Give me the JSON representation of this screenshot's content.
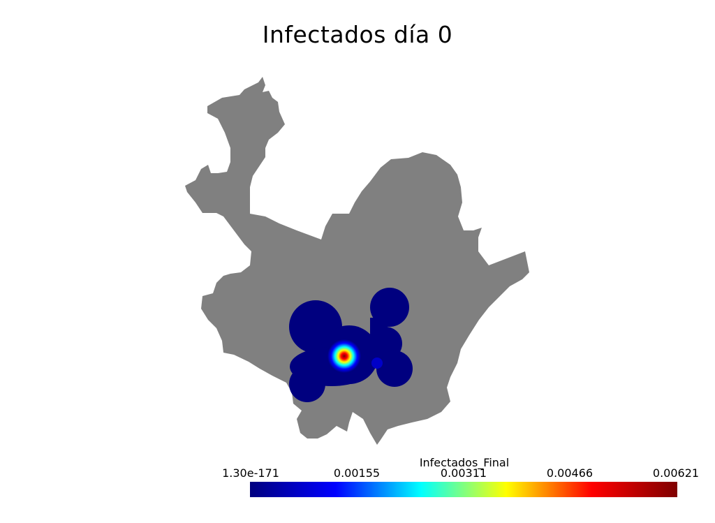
{
  "title": "Infectados día 0",
  "map": {
    "region_fill": "#808080",
    "hotspot_colors": {
      "low": "#00007f",
      "mid": "#00ffff",
      "high": "#7f0000"
    }
  },
  "legend": {
    "title": "Infectados_Final",
    "ticks": [
      "1.30e-171",
      "0.00155",
      "0.00311",
      "0.00466",
      "0.00621"
    ],
    "colormap": [
      "#00007f",
      "#0000ff",
      "#00ffff",
      "#ffff00",
      "#ff0000",
      "#7f0000"
    ]
  }
}
